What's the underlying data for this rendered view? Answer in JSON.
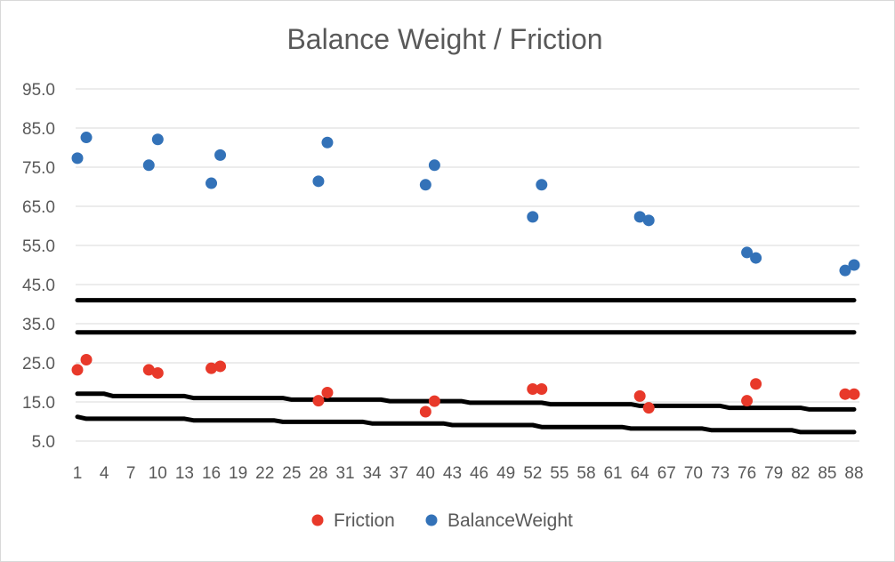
{
  "chart_data": {
    "type": "scatter",
    "title": "Balance Weight / Friction",
    "xlabel": "",
    "ylabel": "",
    "xlim": [
      1,
      88
    ],
    "ylim": [
      5,
      95
    ],
    "x_ticks": [
      1,
      4,
      7,
      10,
      13,
      16,
      19,
      22,
      25,
      28,
      31,
      34,
      37,
      40,
      43,
      46,
      49,
      52,
      55,
      58,
      61,
      64,
      67,
      70,
      73,
      76,
      79,
      82,
      85,
      88
    ],
    "y_ticks": [
      "5.0",
      "15.0",
      "25.0",
      "35.0",
      "45.0",
      "55.0",
      "65.0",
      "75.0",
      "85.0",
      "95.0"
    ],
    "y_tick_values": [
      5,
      15,
      25,
      35,
      45,
      55,
      65,
      75,
      85,
      95
    ],
    "grid": true,
    "legend": "bottom",
    "series": [
      {
        "name": "Friction",
        "color": "#e8392a",
        "points": [
          {
            "x": 1,
            "y": 23.2
          },
          {
            "x": 2,
            "y": 25.8
          },
          {
            "x": 9,
            "y": 23.2
          },
          {
            "x": 10,
            "y": 22.4
          },
          {
            "x": 16,
            "y": 23.6
          },
          {
            "x": 17,
            "y": 24.1
          },
          {
            "x": 28,
            "y": 15.3
          },
          {
            "x": 29,
            "y": 17.4
          },
          {
            "x": 40,
            "y": 12.5
          },
          {
            "x": 41,
            "y": 15.2
          },
          {
            "x": 52,
            "y": 18.3
          },
          {
            "x": 53,
            "y": 18.3
          },
          {
            "x": 64,
            "y": 16.5
          },
          {
            "x": 65,
            "y": 13.5
          },
          {
            "x": 76,
            "y": 15.3
          },
          {
            "x": 77,
            "y": 19.6
          },
          {
            "x": 87,
            "y": 17.0
          },
          {
            "x": 88,
            "y": 17.0
          }
        ]
      },
      {
        "name": "BalanceWeight",
        "color": "#3372b8",
        "points": [
          {
            "x": 1,
            "y": 77.3
          },
          {
            "x": 2,
            "y": 82.6
          },
          {
            "x": 9,
            "y": 75.5
          },
          {
            "x": 10,
            "y": 82.1
          },
          {
            "x": 16,
            "y": 70.9
          },
          {
            "x": 17,
            "y": 78.1
          },
          {
            "x": 28,
            "y": 71.4
          },
          {
            "x": 29,
            "y": 81.3
          },
          {
            "x": 40,
            "y": 70.5
          },
          {
            "x": 41,
            "y": 75.5
          },
          {
            "x": 52,
            "y": 62.3
          },
          {
            "x": 53,
            "y": 70.5
          },
          {
            "x": 64,
            "y": 62.3
          },
          {
            "x": 65,
            "y": 61.4
          },
          {
            "x": 76,
            "y": 53.2
          },
          {
            "x": 77,
            "y": 51.8
          },
          {
            "x": 87,
            "y": 48.6
          },
          {
            "x": 88,
            "y": 50.0
          }
        ]
      }
    ],
    "lines": [
      {
        "color": "#000000",
        "points": [
          {
            "x": 1,
            "y": 41.0
          },
          {
            "x": 88,
            "y": 41.0
          }
        ]
      },
      {
        "color": "#000000",
        "points": [
          {
            "x": 1,
            "y": 32.8
          },
          {
            "x": 88,
            "y": 32.8
          }
        ]
      },
      {
        "color": "#000000",
        "points": [
          {
            "x": 1,
            "y": 17.1
          },
          {
            "x": 4,
            "y": 17.1
          },
          {
            "x": 5,
            "y": 16.5
          },
          {
            "x": 13,
            "y": 16.5
          },
          {
            "x": 14,
            "y": 16.0
          },
          {
            "x": 24,
            "y": 16.0
          },
          {
            "x": 25,
            "y": 15.6
          },
          {
            "x": 35,
            "y": 15.6
          },
          {
            "x": 36,
            "y": 15.2
          },
          {
            "x": 44,
            "y": 15.2
          },
          {
            "x": 45,
            "y": 14.8
          },
          {
            "x": 53,
            "y": 14.8
          },
          {
            "x": 54,
            "y": 14.4
          },
          {
            "x": 63,
            "y": 14.4
          },
          {
            "x": 64,
            "y": 14.0
          },
          {
            "x": 73,
            "y": 14.0
          },
          {
            "x": 74,
            "y": 13.5
          },
          {
            "x": 82,
            "y": 13.5
          },
          {
            "x": 83,
            "y": 13.1
          },
          {
            "x": 88,
            "y": 13.1
          }
        ]
      },
      {
        "color": "#000000",
        "points": [
          {
            "x": 1,
            "y": 11.2
          },
          {
            "x": 2,
            "y": 10.7
          },
          {
            "x": 13,
            "y": 10.7
          },
          {
            "x": 14,
            "y": 10.3
          },
          {
            "x": 23,
            "y": 10.3
          },
          {
            "x": 24,
            "y": 9.9
          },
          {
            "x": 33,
            "y": 9.9
          },
          {
            "x": 34,
            "y": 9.5
          },
          {
            "x": 42,
            "y": 9.5
          },
          {
            "x": 43,
            "y": 9.1
          },
          {
            "x": 52,
            "y": 9.1
          },
          {
            "x": 53,
            "y": 8.6
          },
          {
            "x": 62,
            "y": 8.6
          },
          {
            "x": 63,
            "y": 8.2
          },
          {
            "x": 71,
            "y": 8.2
          },
          {
            "x": 72,
            "y": 7.8
          },
          {
            "x": 81,
            "y": 7.8
          },
          {
            "x": 82,
            "y": 7.3
          },
          {
            "x": 88,
            "y": 7.3
          }
        ]
      }
    ]
  }
}
